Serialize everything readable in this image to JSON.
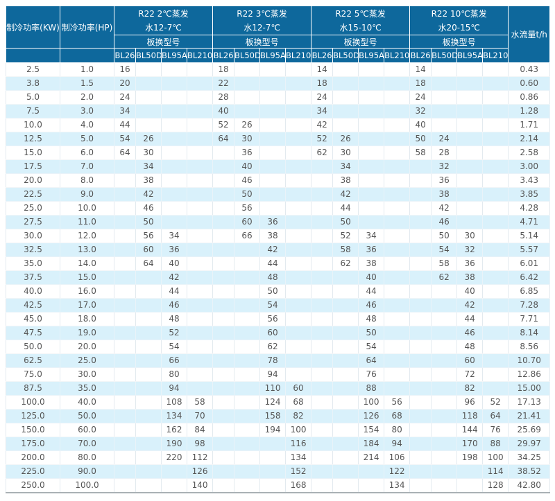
{
  "colors": {
    "header_bg": "#0e689c",
    "header_text": "#ffffff",
    "row_stripe": "#d9f1fb",
    "row_plain": "#ffffff",
    "body_text": "#555555",
    "bottom_border": "#aab1b5"
  },
  "table": {
    "headers": {
      "kw": "制冷功率(KW)",
      "hp": "制冷功率(HP)",
      "flow": "水流量t/h",
      "model_label": "板换型号",
      "models": [
        "BL26",
        "BL50D",
        "BL95A",
        "BL210"
      ],
      "groups": [
        {
          "line1": "R22 2℃蒸发",
          "line2": "水12-7℃"
        },
        {
          "line1": "R22 3℃蒸发",
          "line2": "水12-7℃"
        },
        {
          "line1": "R22 5℃蒸发",
          "line2": "水15-10℃"
        },
        {
          "line1": "R22 10℃蒸发",
          "line2": "水20-15℃"
        }
      ]
    },
    "rows": [
      [
        "2.5",
        "1.0",
        "16",
        "",
        "",
        "",
        "18",
        "",
        "",
        "",
        "14",
        "",
        "",
        "",
        "14",
        "",
        "",
        "",
        "0.43"
      ],
      [
        "3.8",
        "1.5",
        "20",
        "",
        "",
        "",
        "22",
        "",
        "",
        "",
        "18",
        "",
        "",
        "",
        "18",
        "",
        "",
        "",
        "0.60"
      ],
      [
        "5.0",
        "2.0",
        "24",
        "",
        "",
        "",
        "28",
        "",
        "",
        "",
        "24",
        "",
        "",
        "",
        "24",
        "",
        "",
        "",
        "0.86"
      ],
      [
        "7.5",
        "3.0",
        "34",
        "",
        "",
        "",
        "40",
        "",
        "",
        "",
        "34",
        "",
        "",
        "",
        "32",
        "",
        "",
        "",
        "1.28"
      ],
      [
        "10.0",
        "4.0",
        "44",
        "",
        "",
        "",
        "52",
        "26",
        "",
        "",
        "42",
        "",
        "",
        "",
        "40",
        "",
        "",
        "",
        "1.71"
      ],
      [
        "12.5",
        "5.0",
        "54",
        "26",
        "",
        "",
        "64",
        "30",
        "",
        "",
        "52",
        "26",
        "",
        "",
        "50",
        "24",
        "",
        "",
        "2.14"
      ],
      [
        "15.0",
        "6.0",
        "64",
        "30",
        "",
        "",
        "",
        "36",
        "",
        "",
        "62",
        "30",
        "",
        "",
        "58",
        "28",
        "",
        "",
        "2.58"
      ],
      [
        "17.5",
        "7.0",
        "",
        "34",
        "",
        "",
        "",
        "40",
        "",
        "",
        "",
        "34",
        "",
        "",
        "",
        "32",
        "",
        "",
        "3.00"
      ],
      [
        "20.0",
        "8.0",
        "",
        "38",
        "",
        "",
        "",
        "46",
        "",
        "",
        "",
        "38",
        "",
        "",
        "",
        "36",
        "",
        "",
        "3.43"
      ],
      [
        "22.5",
        "9.0",
        "",
        "42",
        "",
        "",
        "",
        "50",
        "",
        "",
        "",
        "42",
        "",
        "",
        "",
        "38",
        "",
        "",
        "3.85"
      ],
      [
        "25.0",
        "10.0",
        "",
        "46",
        "",
        "",
        "",
        "56",
        "",
        "",
        "",
        "44",
        "",
        "",
        "",
        "42",
        "",
        "",
        "4.28"
      ],
      [
        "27.5",
        "11.0",
        "",
        "50",
        "",
        "",
        "",
        "60",
        "36",
        "",
        "",
        "50",
        "",
        "",
        "",
        "46",
        "",
        "",
        "4.71"
      ],
      [
        "30.0",
        "12.0",
        "",
        "56",
        "34",
        "",
        "",
        "66",
        "38",
        "",
        "",
        "52",
        "34",
        "",
        "",
        "50",
        "30",
        "",
        "5.14"
      ],
      [
        "32.5",
        "13.0",
        "",
        "60",
        "36",
        "",
        "",
        "",
        "42",
        "",
        "",
        "58",
        "36",
        "",
        "",
        "54",
        "32",
        "",
        "5.57"
      ],
      [
        "35.0",
        "14.0",
        "",
        "64",
        "40",
        "",
        "",
        "",
        "44",
        "",
        "",
        "62",
        "38",
        "",
        "",
        "58",
        "36",
        "",
        "6.01"
      ],
      [
        "37.5",
        "15.0",
        "",
        "",
        "42",
        "",
        "",
        "",
        "48",
        "",
        "",
        "",
        "40",
        "",
        "",
        "62",
        "38",
        "",
        "6.42"
      ],
      [
        "40.0",
        "16.0",
        "",
        "",
        "44",
        "",
        "",
        "",
        "50",
        "",
        "",
        "",
        "44",
        "",
        "",
        "",
        "40",
        "",
        "6.85"
      ],
      [
        "42.5",
        "17.0",
        "",
        "",
        "46",
        "",
        "",
        "",
        "54",
        "",
        "",
        "",
        "46",
        "",
        "",
        "",
        "42",
        "",
        "7.28"
      ],
      [
        "45.0",
        "18.0",
        "",
        "",
        "48",
        "",
        "",
        "",
        "56",
        "",
        "",
        "",
        "48",
        "",
        "",
        "",
        "44",
        "",
        "7.71"
      ],
      [
        "47.5",
        "19.0",
        "",
        "",
        "52",
        "",
        "",
        "",
        "60",
        "",
        "",
        "",
        "50",
        "",
        "",
        "",
        "46",
        "",
        "8.14"
      ],
      [
        "50.0",
        "20.0",
        "",
        "",
        "54",
        "",
        "",
        "",
        "62",
        "",
        "",
        "",
        "54",
        "",
        "",
        "",
        "48",
        "",
        "8.56"
      ],
      [
        "62.5",
        "25.0",
        "",
        "",
        "66",
        "",
        "",
        "",
        "78",
        "",
        "",
        "",
        "64",
        "",
        "",
        "",
        "60",
        "",
        "10.70"
      ],
      [
        "75.0",
        "30.0",
        "",
        "",
        "80",
        "",
        "",
        "",
        "94",
        "",
        "",
        "",
        "76",
        "",
        "",
        "",
        "72",
        "",
        "12.86"
      ],
      [
        "87.5",
        "35.0",
        "",
        "",
        "94",
        "",
        "",
        "",
        "110",
        "60",
        "",
        "",
        "88",
        "",
        "",
        "",
        "82",
        "",
        "15.00"
      ],
      [
        "100.0",
        "40.0",
        "",
        "",
        "108",
        "58",
        "",
        "",
        "124",
        "68",
        "",
        "",
        "100",
        "56",
        "",
        "",
        "96",
        "52",
        "17.13"
      ],
      [
        "125.0",
        "50.0",
        "",
        "",
        "134",
        "70",
        "",
        "",
        "158",
        "82",
        "",
        "",
        "126",
        "68",
        "",
        "",
        "118",
        "64",
        "21.41"
      ],
      [
        "150.0",
        "60.0",
        "",
        "",
        "162",
        "84",
        "",
        "",
        "194",
        "100",
        "",
        "",
        "154",
        "80",
        "",
        "",
        "144",
        "76",
        "25.69"
      ],
      [
        "175.0",
        "70.0",
        "",
        "",
        "190",
        "98",
        "",
        "",
        "",
        "116",
        "",
        "",
        "184",
        "94",
        "",
        "",
        "170",
        "88",
        "29.97"
      ],
      [
        "200.0",
        "80.0",
        "",
        "",
        "220",
        "112",
        "",
        "",
        "",
        "134",
        "",
        "",
        "214",
        "106",
        "",
        "",
        "198",
        "100",
        "34.25"
      ],
      [
        "225.0",
        "90.0",
        "",
        "",
        "",
        "126",
        "",
        "",
        "",
        "152",
        "",
        "",
        "",
        "122",
        "",
        "",
        "",
        "114",
        "38.52"
      ],
      [
        "250.0",
        "100.0",
        "",
        "",
        "",
        "140",
        "",
        "",
        "",
        "168",
        "",
        "",
        "",
        "134",
        "",
        "",
        "",
        "128",
        "42.80"
      ]
    ]
  }
}
